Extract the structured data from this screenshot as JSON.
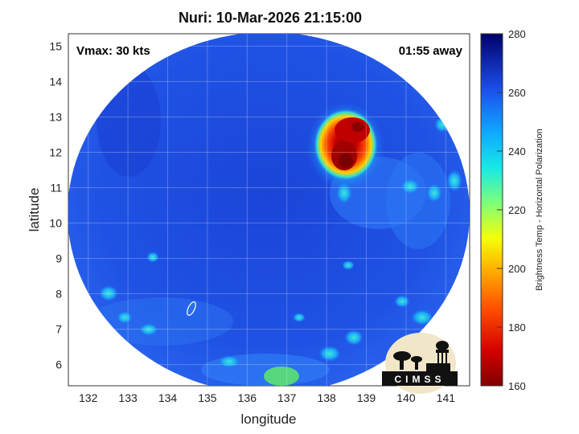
{
  "title": "Nuri: 10-Mar-2026 21:15:00",
  "vmax": "Vmax: 30 kts",
  "time_away": "01:55 away",
  "map": {
    "x_label": "longitude",
    "y_label": "latitude",
    "x_ticks": [
      "132",
      "133",
      "134",
      "135",
      "136",
      "137",
      "138",
      "139",
      "140",
      "141"
    ],
    "y_ticks": [
      "6",
      "7",
      "8",
      "9",
      "10",
      "11",
      "12",
      "13",
      "14",
      "15"
    ],
    "x_range": [
      131.5,
      141.6
    ],
    "y_range": [
      5.4,
      15.35
    ],
    "grid": true
  },
  "colorbar": {
    "label": "Brightness Temp - Horizontal Polarization",
    "ticks": [
      "160",
      "180",
      "200",
      "220",
      "240",
      "260",
      "280"
    ],
    "range": [
      160,
      280
    ]
  },
  "logo": {
    "text": "CIMSS"
  },
  "colors": {
    "background_blue": "#1f4fe0",
    "cold_core": "#8b0000"
  }
}
